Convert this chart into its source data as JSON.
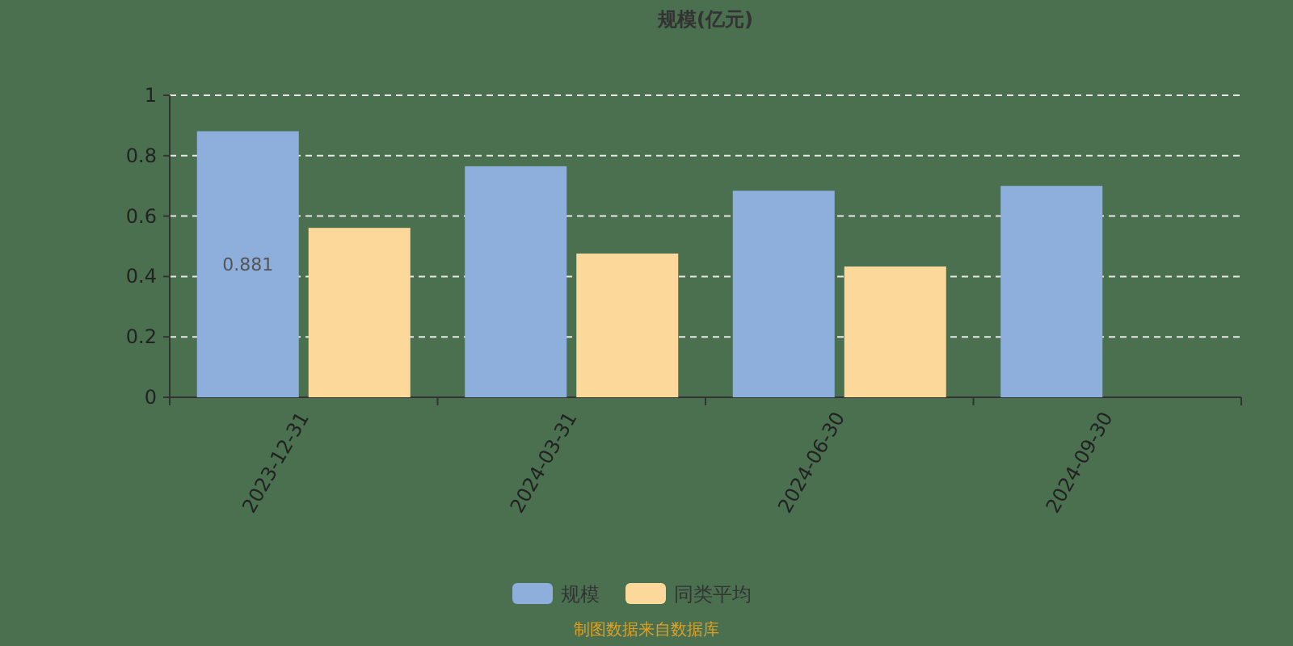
{
  "chart_data": {
    "type": "bar",
    "title": "规模(亿元)",
    "categories": [
      "2023-12-31",
      "2024-03-31",
      "2024-06-30",
      "2024-09-30"
    ],
    "series": [
      {
        "name": "规模",
        "color": "#8eaedc",
        "values": [
          0.881,
          0.765,
          0.684,
          0.7
        ],
        "value_labels": [
          "0.881",
          null,
          null,
          null
        ]
      },
      {
        "name": "同类平均",
        "color": "#fcd99a",
        "values": [
          0.561,
          0.476,
          0.433,
          null
        ]
      }
    ],
    "ylim": [
      0,
      1
    ],
    "yticks": [
      0,
      0.2,
      0.4,
      0.6,
      0.8,
      1
    ],
    "grid": "y",
    "legend": "bottom",
    "annotations": [
      "制图数据来自数据库"
    ]
  }
}
